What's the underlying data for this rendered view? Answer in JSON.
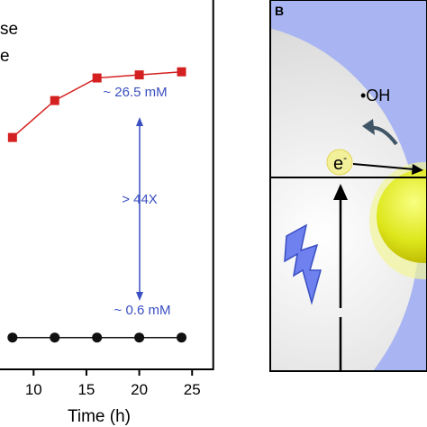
{
  "chart_data": {
    "type": "line",
    "x_label": "Time (h)",
    "xlim": [
      0,
      27
    ],
    "xticks": [
      10,
      15,
      20,
      25
    ],
    "ylim": [
      -2.5,
      33.5
    ],
    "series": [
      {
        "name": "se",
        "color": "#d42020",
        "marker": "square",
        "x": [
          8,
          12,
          16,
          20,
          24
        ],
        "values": [
          20.1,
          23.7,
          25.9,
          26.2,
          26.5
        ]
      },
      {
        "name": "e",
        "color": "#111111",
        "marker": "circle",
        "x": [
          8,
          12,
          16,
          20,
          24
        ],
        "values": [
          0.6,
          0.6,
          0.6,
          0.6,
          0.6
        ]
      }
    ],
    "annotations": [
      "~ 26.5 mM",
      "> 44X",
      "~ 0.6 mM"
    ],
    "annotation_color": "#3a4fc1"
  },
  "panel_b": {
    "label": "B",
    "radical": "•OH",
    "electron": "e",
    "electron_charge": "-"
  }
}
